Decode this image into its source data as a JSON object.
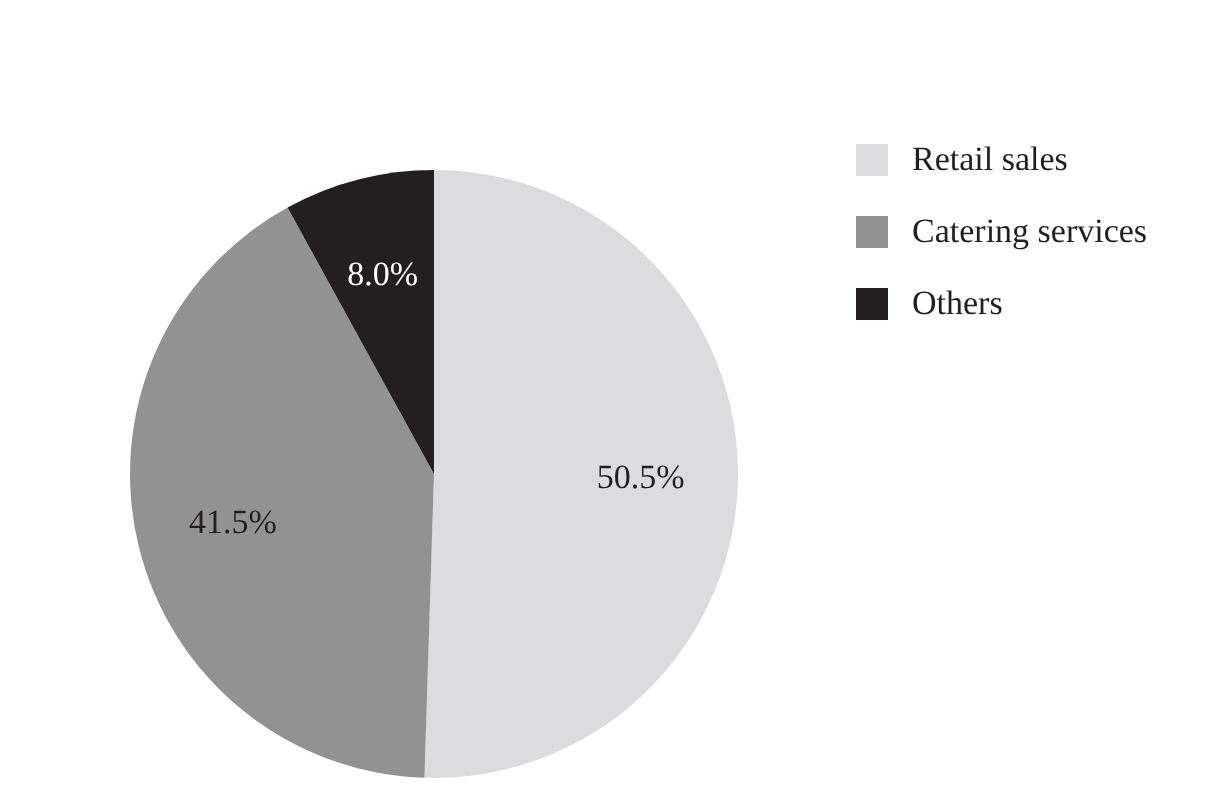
{
  "chart_data": {
    "type": "pie",
    "categories": [
      "Retail sales",
      "Catering services",
      "Others"
    ],
    "values": [
      50.5,
      41.5,
      8.0
    ],
    "colors": [
      "#dcdcde",
      "#929292",
      "#231f20"
    ],
    "value_labels": [
      "50.5%",
      "41.5%",
      "8.0%"
    ],
    "legend": "top right"
  }
}
